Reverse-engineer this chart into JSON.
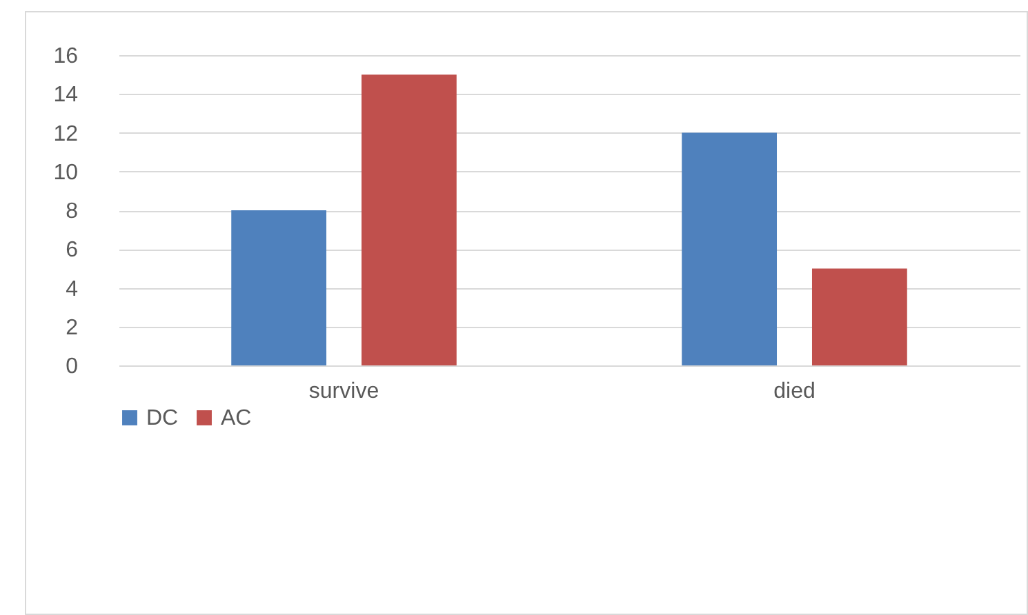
{
  "chart_data": {
    "type": "bar",
    "categories": [
      "survive",
      "died"
    ],
    "series": [
      {
        "name": "DC",
        "color": "#4f81bd",
        "values": [
          8,
          12
        ]
      },
      {
        "name": "AC",
        "color": "#c0504d",
        "values": [
          15,
          5
        ]
      }
    ],
    "ylim": [
      0,
      16
    ],
    "yticks": [
      0,
      2,
      4,
      6,
      8,
      10,
      12,
      14,
      16
    ],
    "grid": "y",
    "legend": "bottom"
  }
}
